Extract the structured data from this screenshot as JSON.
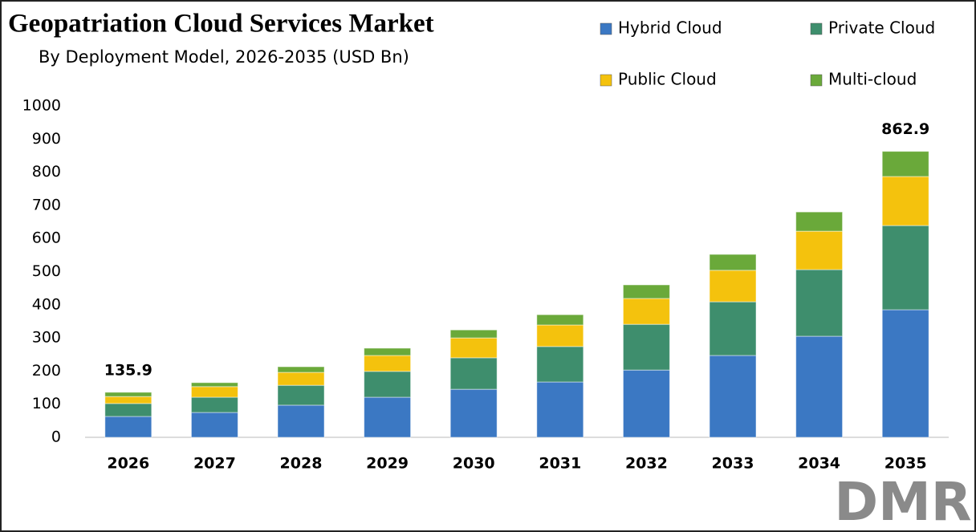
{
  "chart_data": {
    "type": "stacked_bar",
    "title": "Geopatriation Cloud Services Market",
    "subtitle": "By Deployment Model, 2026-2035 (USD Bn)",
    "categories": [
      "2026",
      "2027",
      "2028",
      "2029",
      "2030",
      "2031",
      "2032",
      "2033",
      "2034",
      "2035"
    ],
    "series": [
      {
        "name": "Hybrid Cloud",
        "color": "#3b78c3",
        "values": [
          63,
          75,
          97,
          121,
          145,
          167,
          203,
          247,
          305,
          385
        ]
      },
      {
        "name": "Private Cloud",
        "color": "#3e8e6d",
        "values": [
          39,
          46,
          60,
          78,
          95,
          107,
          138,
          162,
          201,
          254
        ]
      },
      {
        "name": "Public Cloud",
        "color": "#f4c20d",
        "values": [
          21,
          32,
          39,
          48,
          60,
          65,
          78,
          95,
          116,
          148
        ]
      },
      {
        "name": "Multi-cloud",
        "color": "#6aa93a",
        "values": [
          12.9,
          12,
          17,
          22,
          24,
          31,
          41,
          48,
          58,
          75.9
        ]
      }
    ],
    "total_labels": [
      {
        "category": "2026",
        "value": 135.9
      },
      {
        "category": "2035",
        "value": 862.9
      }
    ],
    "ylim": [
      0,
      1000
    ],
    "yticks": [
      0,
      100,
      200,
      300,
      400,
      500,
      600,
      700,
      800,
      900,
      1000
    ],
    "grid": false,
    "legend": "top-right",
    "logo": "DMR"
  }
}
